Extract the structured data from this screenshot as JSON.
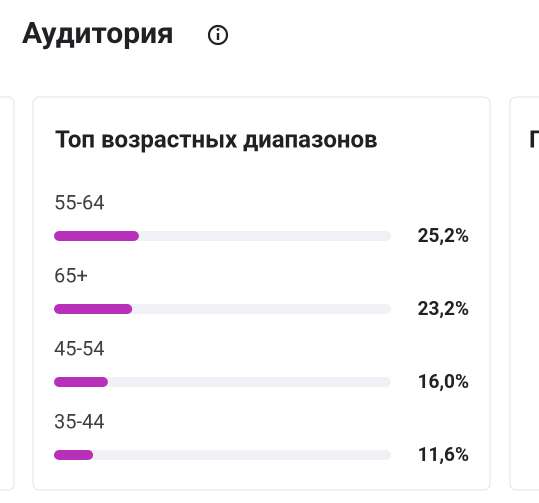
{
  "header": {
    "title": "Аудитория"
  },
  "chart_data": {
    "type": "bar",
    "orientation": "horizontal",
    "title": "Топ возрастных диапазонов",
    "categories": [
      "55-64",
      "65+",
      "45-54",
      "35-44"
    ],
    "values": [
      25.2,
      23.2,
      16.0,
      11.6
    ],
    "value_labels": [
      "25,2%",
      "23,2%",
      "16,0%",
      "11,6%"
    ],
    "color": "#b82fb9",
    "xlim": [
      0,
      100
    ]
  },
  "side_card": {
    "title": "П"
  }
}
